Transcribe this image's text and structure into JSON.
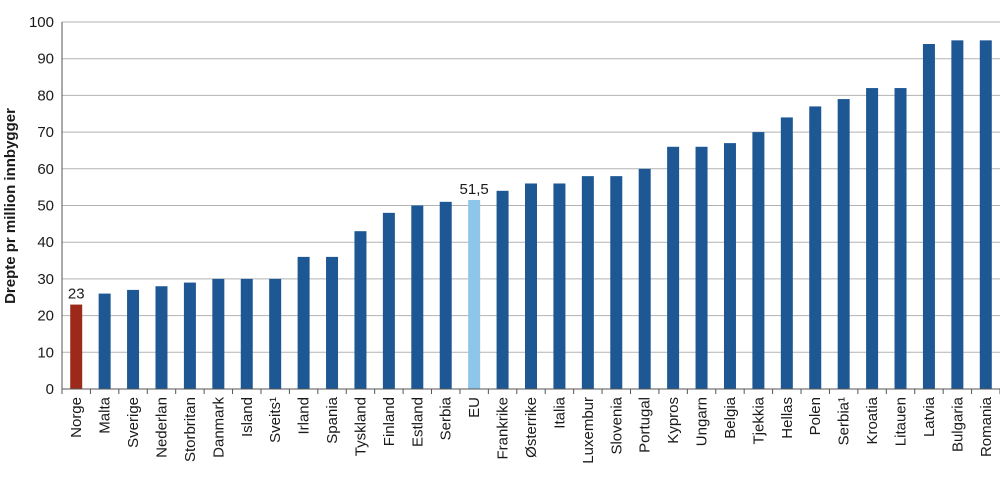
{
  "chart_data": {
    "type": "bar",
    "ylabel": "Drepte pr million innbygger",
    "ylim": [
      0,
      100
    ],
    "yticks": [
      "0",
      "10",
      "20",
      "30",
      "40",
      "50",
      "60",
      "70",
      "80",
      "90",
      "100"
    ],
    "grid": true,
    "categories": [
      "Norge",
      "Malta",
      "Sverige",
      "Nederlan",
      "Storbritan",
      "Danmark",
      "Island",
      "Sveits¹",
      "Irland",
      "Spania",
      "Tyskland",
      "Finland",
      "Estland",
      "Serbia",
      "EU",
      "Frankrike",
      "Østerrike",
      "Italia",
      "Luxembur",
      "Slovenia",
      "Portugal",
      "Kypros",
      "Ungarn",
      "Belgia",
      "Tjekkia",
      "Hellas",
      "Polen",
      "Serbia¹",
      "Kroatia",
      "Litauen",
      "Latvia",
      "Bulgaria",
      "Romania"
    ],
    "values": [
      23,
      26,
      27,
      28,
      29,
      30,
      30,
      30,
      36,
      36,
      43,
      48,
      50,
      51,
      51.5,
      54,
      56,
      56,
      58,
      58,
      60,
      66,
      66,
      67,
      70,
      74,
      77,
      79,
      82,
      82,
      94,
      95,
      95
    ],
    "data_labels": [
      {
        "index": 0,
        "text": "23"
      },
      {
        "index": 14,
        "text": "51,5"
      }
    ],
    "colors": {
      "default": "#1d5894",
      "highlight_norge": "#9b2a1b",
      "highlight_eu": "#8ec6ea",
      "grid": "#b3b3b3",
      "axis": "#555555"
    }
  }
}
